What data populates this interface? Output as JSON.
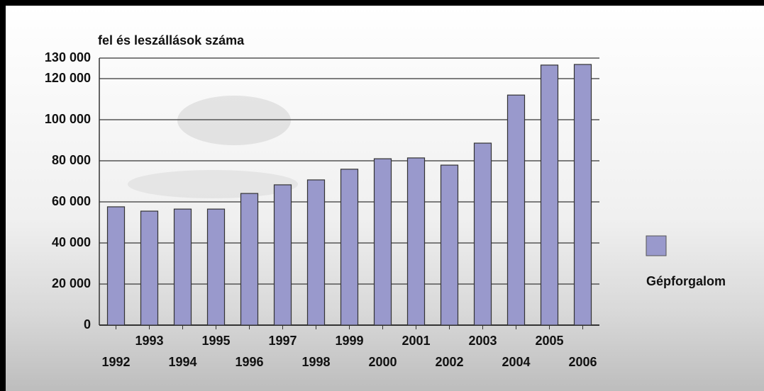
{
  "chart_data": {
    "type": "bar",
    "y_axis_label": "fel és leszállások száma",
    "categories": [
      "1992",
      "1993",
      "1994",
      "1995",
      "1996",
      "1997",
      "1998",
      "1999",
      "2000",
      "2001",
      "2002",
      "2003",
      "2004",
      "2005",
      "2006"
    ],
    "series": [
      {
        "name": "Gépforgalom",
        "color": "#9999cc",
        "values": [
          57600,
          55500,
          56500,
          56500,
          64100,
          68300,
          70700,
          75900,
          81000,
          81400,
          77900,
          88600,
          112000,
          126600,
          126900
        ]
      }
    ],
    "ylim": [
      0,
      130000
    ],
    "yticks": [
      0,
      {
        "value": 20000,
        "label": "20 000"
      },
      {
        "value": 40000,
        "label": "40 000"
      },
      {
        "value": 60000,
        "label": "60 000"
      },
      {
        "value": 80000,
        "label": "80 000"
      },
      {
        "value": 100000,
        "label": "100 000"
      },
      {
        "value": 120000,
        "label": "120 000"
      },
      {
        "value": 130000,
        "label": "130 000"
      }
    ],
    "grid": true,
    "legend": "right"
  }
}
